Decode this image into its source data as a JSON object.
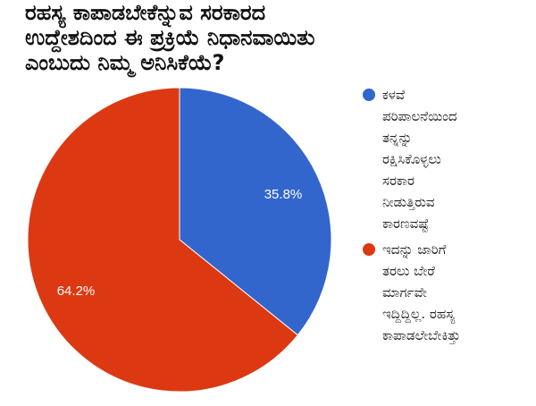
{
  "chart_data": {
    "type": "pie",
    "title": "ರಹಸ್ಯ ಕಾಪಾಡಬೇಕೆನ್ನುವ ಸರಕಾರದ ಉದ್ದೇಶದಿಂದ ಈ ಪ್ರಕ್ರಿಯೆ ನಿಧಾನವಾಯಿತು ಎಂಬುದು ನಿಮ್ಮ ಅನಿಸಿಕೆಯೆ?",
    "title_lines": [
      "ರಹಸ್ಯ ಕಾಪಾಡಬೇಕೆನ್ನುವ ಸರಕಾರದ",
      "ಉದ್ದೇಶದಿಂದ ಈ ಪ್ರಕ್ರಿಯೆ ನಿಧಾನವಾಯಿತು",
      "ಎಂಬುದು ನಿಮ್ಮ ಅನಿಸಿಕೆಯೆ?"
    ],
    "categories": [
      "ಕಳವೆ ಪರಿಪಾಲನೆಯಿಂದ ತನ್ನನ್ನು ರಕ್ಷಿಸಿಕೊಳ್ಳಲು ಸರಕಾರ ನೀಡುತ್ತಿರುವ ಕಾರಣವಷ್ಟೆ",
      "ಇದನ್ನು ಜಾರಿಗೆ ತರಲು ಬೇರೆ ಮಾರ್ಗವೇ ಇದ್ದಿದ್ದಿಲ್ಲ. ರಹಸ್ಯ ಕಾಪಾಡಲೇಬೇಕಿತ್ತು"
    ],
    "values": [
      35.8,
      64.2
    ],
    "value_labels": [
      "35.8%",
      "64.2%"
    ],
    "colors": [
      "#3366CC",
      "#DC3912"
    ],
    "legend_position": "right",
    "start_angle_deg": 0,
    "direction": "clockwise"
  },
  "title": {
    "lines": [
      "ರಹಸ್ಯ ಕಾಪಾಡಬೇಕೆನ್ನುವ ಸರಕಾರದ",
      "ಉದ್ದೇಶದಿಂದ ಈ ಪ್ರಕ್ರಿಯೆ ನಿಧಾನವಾಯಿತು",
      "ಎಂಬುದು ನಿಮ್ಮ ಅನಿಸಿಕೆಯೆ?"
    ]
  },
  "slices": [
    {
      "label": "35.8%",
      "color": "#3366CC"
    },
    {
      "label": "64.2%",
      "color": "#DC3912"
    }
  ],
  "legend": {
    "items": [
      {
        "color": "#3366CC",
        "lines": [
          "ಕಳವೆ",
          "ಪರಿಪಾಲನೆಯಿಂದ",
          "ತನ್ನನ್ನು",
          "ರಕ್ಷಿಸಿಕೊಳ್ಳಲು",
          "ಸರಕಾರ",
          "ನೀಡುತ್ತಿರುವ",
          "ಕಾರಣವಷ್ಟೆ"
        ]
      },
      {
        "color": "#DC3912",
        "lines": [
          "ಇದನ್ನು ಜಾರಿಗೆ",
          "ತರಲು ಬೇರೆ",
          "ಮಾರ್ಗವೇ",
          "ಇದ್ದಿದ್ದಿಲ್ಲ. ರಹಸ್ಯ",
          "ಕಾಪಾಡಲೇಬೇಕಿತ್ತು"
        ]
      }
    ]
  }
}
